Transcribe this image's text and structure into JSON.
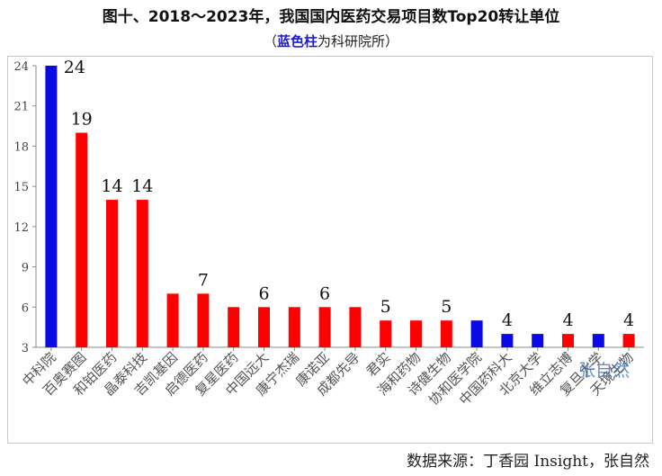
{
  "title": "图十、2018～2023年，我国国内医药交易项目数Top20转让单位",
  "subtitle": {
    "prefix": "（",
    "highlight": "蓝色柱",
    "suffix": "为科研院所）"
  },
  "source": "数据来源：丁香园 Insight，张自然",
  "watermark": "张自然",
  "colors": {
    "research": "#0a0ae6",
    "company": "#ff0000"
  },
  "chart_data": {
    "type": "bar",
    "categories": [
      "中科院",
      "百奥赛图",
      "和铂医药",
      "晶泰科技",
      "吉凯基因",
      "启德医药",
      "复星医药",
      "中国远大",
      "康宁杰瑞",
      "康诺亚",
      "成都先导",
      "君实",
      "海和药物",
      "诗健生物",
      "协和医学院",
      "中国药科大",
      "北京大学",
      "维立志博",
      "复旦大学",
      "天境生物"
    ],
    "values": [
      24,
      19,
      14,
      14,
      7,
      7,
      6,
      6,
      6,
      6,
      6,
      5,
      5,
      5,
      5,
      4,
      4,
      4,
      4,
      4
    ],
    "group": [
      "research",
      "company",
      "company",
      "company",
      "company",
      "company",
      "company",
      "company",
      "company",
      "company",
      "company",
      "company",
      "company",
      "company",
      "research",
      "research",
      "research",
      "company",
      "research",
      "company"
    ],
    "labels": [
      "24",
      "19",
      "14",
      "14",
      "",
      "7",
      "",
      "6",
      "",
      "6",
      "",
      "5",
      "",
      "5",
      "",
      "4",
      "",
      "4",
      "",
      "4"
    ],
    "ylim": [
      3,
      24
    ],
    "yticks": [
      3,
      6,
      9,
      12,
      15,
      18,
      21,
      24
    ],
    "grid": false,
    "legend": "none"
  }
}
